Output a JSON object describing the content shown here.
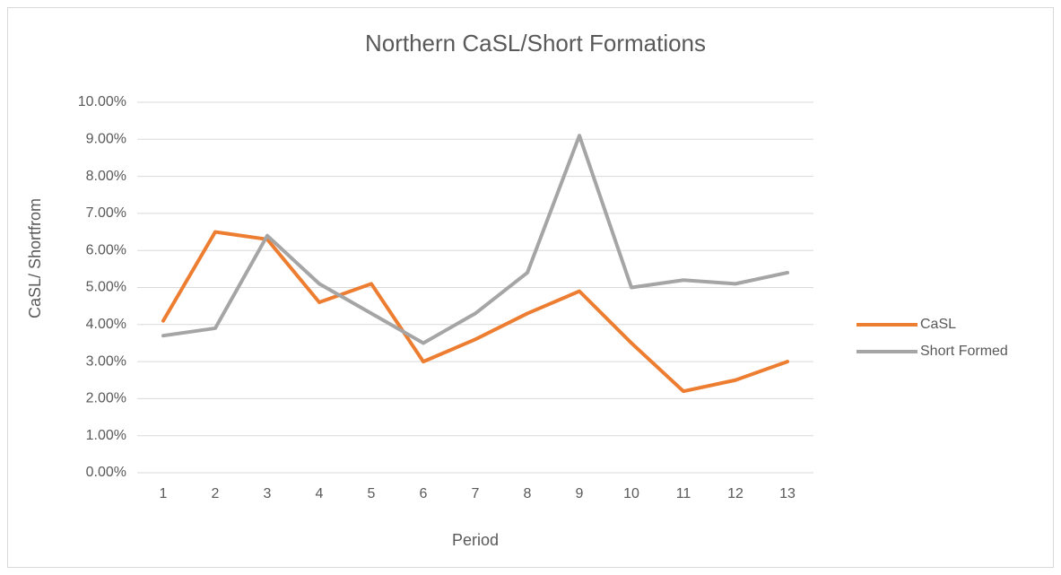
{
  "chart_data": {
    "type": "line",
    "title": "Northern CaSL/Short Formations",
    "x_label": "Period",
    "y_label": "CaSL/ Shortfrom",
    "categories": [
      "1",
      "2",
      "3",
      "4",
      "5",
      "6",
      "7",
      "8",
      "9",
      "10",
      "11",
      "12",
      "13"
    ],
    "series": [
      {
        "name": "CaSL",
        "color": "#ed7d31",
        "values": [
          4.1,
          6.5,
          6.3,
          4.6,
          5.1,
          3.0,
          3.6,
          4.3,
          4.9,
          3.5,
          2.2,
          2.5,
          3.0
        ]
      },
      {
        "name": "Short Formed",
        "color": "#a5a5a5",
        "values": [
          3.7,
          3.9,
          6.4,
          5.1,
          4.3,
          3.5,
          4.3,
          5.4,
          9.1,
          5.0,
          5.2,
          5.1,
          5.4
        ]
      }
    ],
    "ylim": [
      0,
      10
    ],
    "yticks": [
      {
        "value": 0,
        "label": "0.00%"
      },
      {
        "value": 1,
        "label": "1.00%"
      },
      {
        "value": 2,
        "label": "2.00%"
      },
      {
        "value": 3,
        "label": "3.00%"
      },
      {
        "value": 4,
        "label": "4.00%"
      },
      {
        "value": 5,
        "label": "5.00%"
      },
      {
        "value": 6,
        "label": "6.00%"
      },
      {
        "value": 7,
        "label": "7.00%"
      },
      {
        "value": 8,
        "label": "8.00%"
      },
      {
        "value": 9,
        "label": "9.00%"
      },
      {
        "value": 10,
        "label": "10.00%"
      }
    ],
    "grid": true,
    "legend": "right"
  }
}
